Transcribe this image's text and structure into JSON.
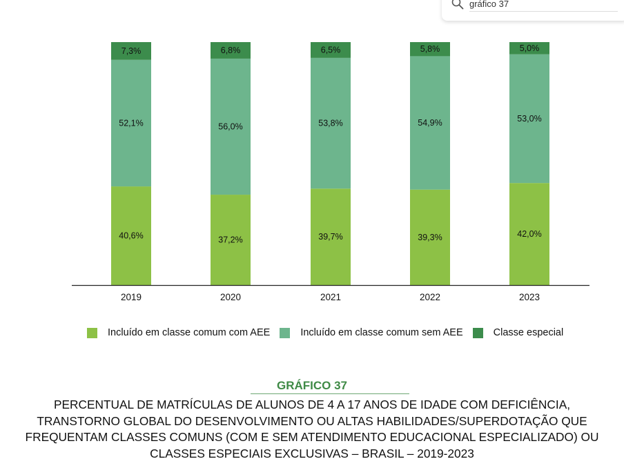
{
  "search": {
    "value": "gráfico 37",
    "icon": "search-icon"
  },
  "colors": {
    "included_with_aee": "#8dc146",
    "included_without_aee": "#6db58d",
    "special_class": "#3c8c4c",
    "caption_accent": "#3f8a46"
  },
  "chart_data": {
    "type": "bar",
    "stacked": true,
    "categories": [
      "2019",
      "2020",
      "2021",
      "2022",
      "2023"
    ],
    "series": [
      {
        "name": "Incluído em classe comum com AEE",
        "values": [
          40.6,
          37.2,
          39.7,
          39.3,
          42.0
        ],
        "labels": [
          "40,6%",
          "37,2%",
          "39,7%",
          "39,3%",
          "42,0%"
        ]
      },
      {
        "name": "Incluído em classe comum sem AEE",
        "values": [
          52.1,
          56.0,
          53.8,
          54.9,
          53.0
        ],
        "labels": [
          "52,1%",
          "56,0%",
          "53,8%",
          "54,9%",
          "53,0%"
        ]
      },
      {
        "name": "Classe especial",
        "values": [
          7.3,
          6.8,
          6.5,
          5.8,
          5.0
        ],
        "labels": [
          "7,3%",
          "6,8%",
          "6,5%",
          "5,8%",
          "5,0%"
        ]
      }
    ],
    "ylim": [
      0,
      100
    ],
    "grid": false,
    "legend_position": "bottom"
  },
  "caption": {
    "number": "GRÁFICO 37",
    "title_lines": [
      "PERCENTUAL DE MATRÍCULAS DE ALUNOS DE 4 A 17 ANOS DE IDADE COM DEFICIÊNCIA,",
      "TRANSTORNO GLOBAL DO DESENVOLVIMENTO OU ALTAS HABILIDADES/SUPERDOTAÇÃO QUE",
      "FREQUENTAM CLASSES COMUNS (COM E SEM ATENDIMENTO EDUCACIONAL ESPECIALIZADO) OU",
      "CLASSES ESPECIAIS EXCLUSIVAS – BRASIL – 2019-2023"
    ]
  }
}
